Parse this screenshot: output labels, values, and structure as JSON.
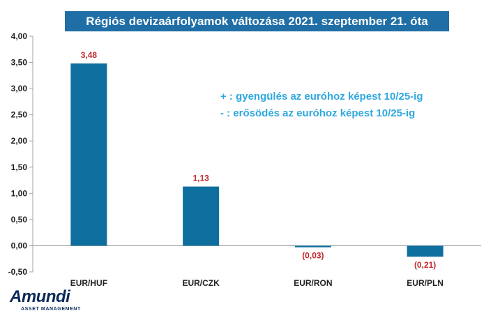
{
  "chart_data": {
    "type": "bar",
    "title": "Régiós devizaárfolyamok változása 2021. szeptember 21. óta",
    "categories": [
      "EUR/HUF",
      "EUR/CZK",
      "EUR/RON",
      "EUR/PLN"
    ],
    "values": [
      3.48,
      1.13,
      -0.03,
      -0.21
    ],
    "data_labels": [
      "3,48",
      "1,13",
      "(0,03)",
      "(0,21)"
    ],
    "y_ticks": [
      "4,00",
      "3,50",
      "3,00",
      "2,50",
      "2,00",
      "1,50",
      "1,00",
      "0,50",
      "0,00",
      "-0,50"
    ],
    "ylim": [
      -0.5,
      4.0
    ],
    "grid": false,
    "annotations": [
      "+ : gyengülés az euróhoz képest 10/25-ig",
      "- : erősödés az euróhoz képest 10/25-ig"
    ],
    "colors": {
      "bar": "#0e6e9e",
      "data_label": "#c0282d",
      "axis": "#a0a0a0",
      "title_bg": "#1f6ea6",
      "legend_text": "#2fa8df"
    }
  },
  "logo": {
    "name": "Amundi",
    "tagline": "ASSET MANAGEMENT"
  }
}
